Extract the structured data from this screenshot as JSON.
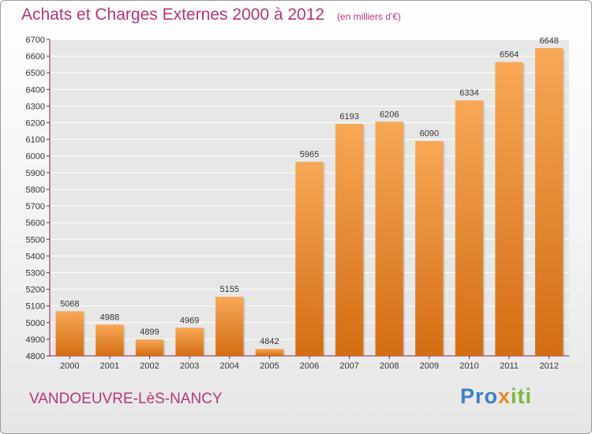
{
  "header": {
    "title": "Achats et Charges Externes 2000 à 2012",
    "unit": "(en milliers d'€)"
  },
  "footer": {
    "town": "VANDOEUVRE-LèS-NANCY",
    "logo_part1": "Pro",
    "logo_part2": "x",
    "logo_part3": "iti"
  },
  "colors": {
    "title": "#b8357a",
    "bar_top": "#f7a857",
    "bar_bottom": "#d36d14",
    "axis": "#8b1a4a"
  },
  "chart_data": {
    "type": "bar",
    "title": "Achats et Charges Externes 2000 à 2012",
    "subtitle": "(en milliers d'€)",
    "categories": [
      "2000",
      "2001",
      "2002",
      "2003",
      "2004",
      "2005",
      "2006",
      "2007",
      "2008",
      "2009",
      "2010",
      "2011",
      "2012"
    ],
    "values": [
      5068,
      4988,
      4899,
      4969,
      5155,
      4842,
      5965,
      6193,
      6206,
      6090,
      6334,
      6564,
      6648
    ],
    "ylim": [
      4800,
      6700
    ],
    "ytick_step": 100,
    "xlabel": "",
    "ylabel": "",
    "grid": true,
    "data_labels": true
  }
}
